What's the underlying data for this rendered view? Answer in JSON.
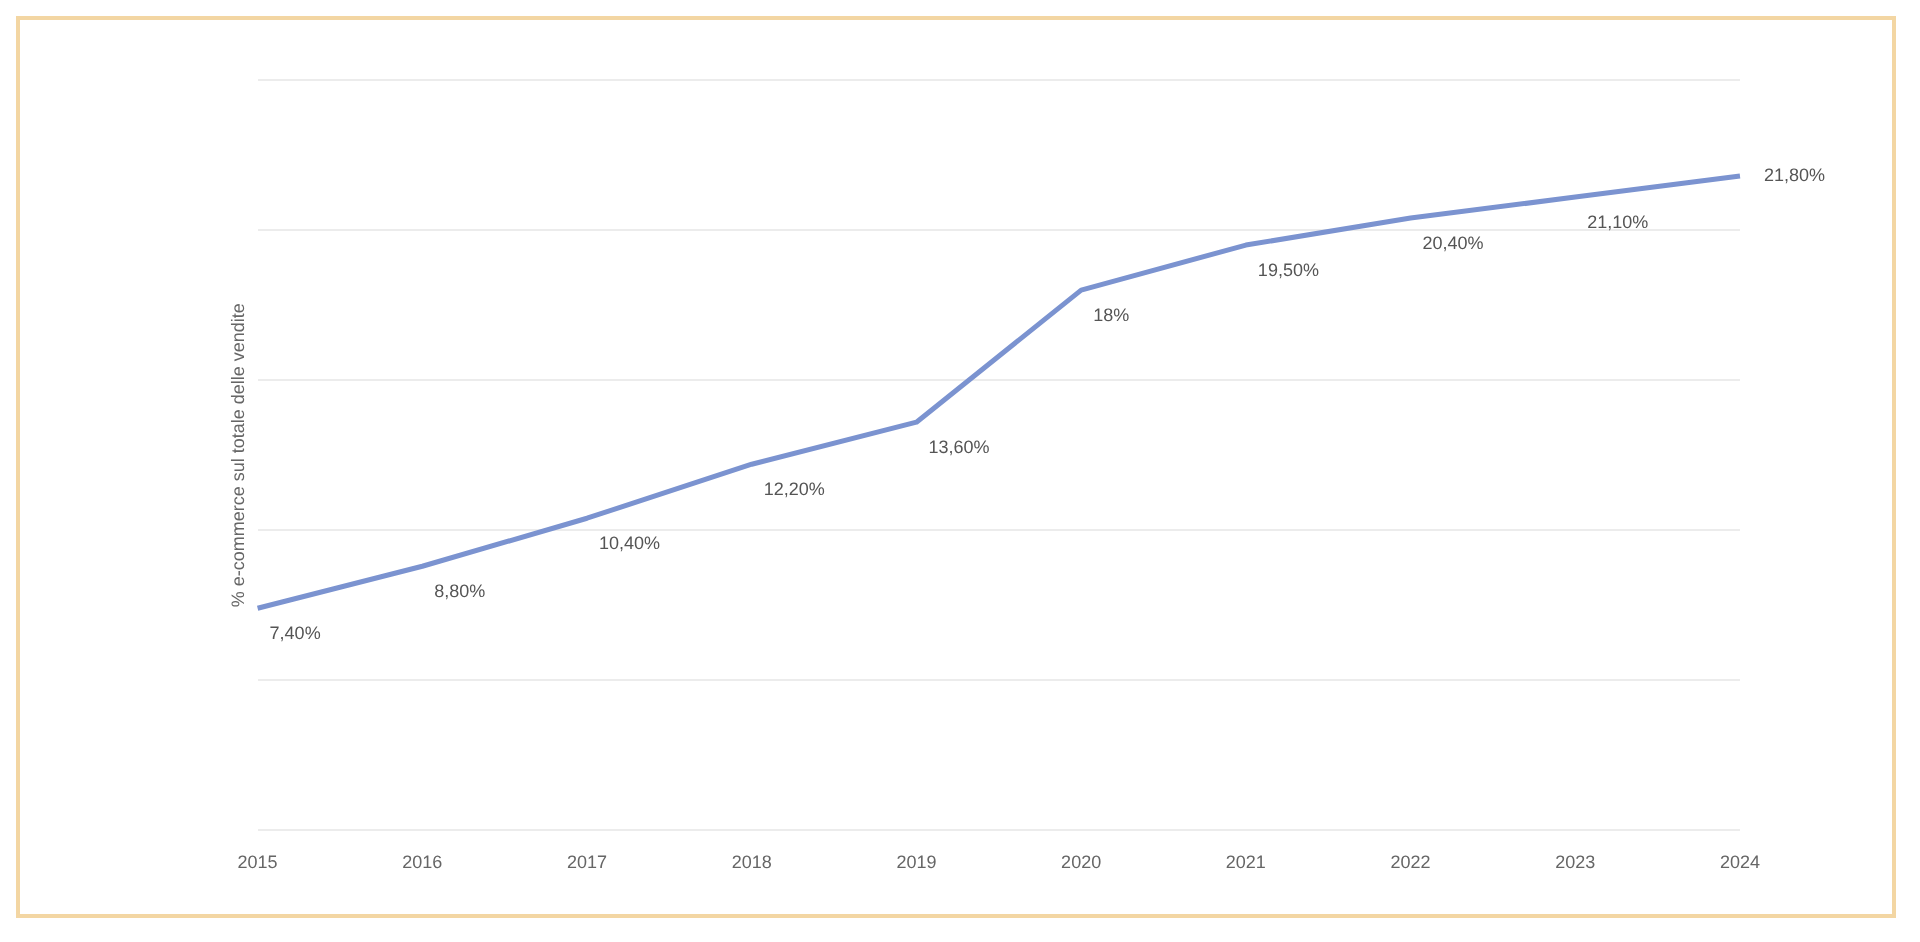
{
  "chart_data": {
    "type": "line",
    "ylabel": "% e-commerce sul totale delle vendite",
    "categories": [
      "2015",
      "2016",
      "2017",
      "2018",
      "2019",
      "2020",
      "2021",
      "2022",
      "2023",
      "2024"
    ],
    "series": [
      {
        "color": "#7b93d0",
        "values": [
          7.4,
          8.8,
          10.4,
          12.2,
          13.6,
          18,
          19.5,
          20.4,
          21.1,
          21.8
        ],
        "value_labels": [
          "7,40%",
          "8,80%",
          "10,40%",
          "12,20%",
          "13,60%",
          "18%",
          "19,50%",
          "20,40%",
          "21,10%",
          "21,80%"
        ]
      }
    ],
    "ylim": [
      0,
      25
    ],
    "yticks": [
      {
        "value": 0,
        "label": null
      },
      {
        "value": 5,
        "label": null
      },
      {
        "value": 10,
        "label": null
      },
      {
        "value": 15,
        "label": null
      },
      {
        "value": 20,
        "label": null
      },
      {
        "value": 25,
        "label": null
      }
    ],
    "grid": "y",
    "tick_labels": "x",
    "marker": "none",
    "line_style": "solid",
    "legend": false
  }
}
